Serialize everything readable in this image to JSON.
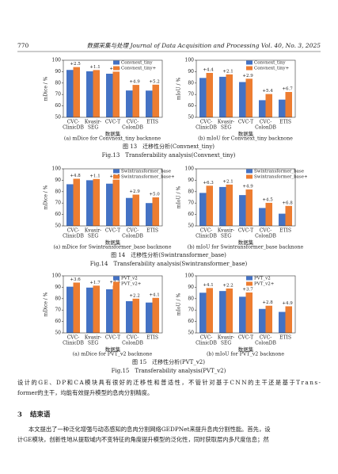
{
  "header": {
    "page_number": "770",
    "journal": "数据采集与处理 Journal of Data Acquisition and Processing Vol. 40, No. 3, 2025"
  },
  "chart_data": [
    {
      "type": "bar",
      "ylabel": "mDice / %",
      "xlabel": "数据集",
      "categories": [
        [
          "CVC-",
          "ClinicDB"
        ],
        [
          "Kvasir-",
          "SEG"
        ],
        [
          "CVC-T"
        ],
        [
          "CVC-",
          "ColonDB"
        ],
        [
          "ETIS"
        ]
      ],
      "series": [
        {
          "name": "Convnext_tiny",
          "color": "#4472c4",
          "values": [
            91.5,
            90.3,
            88.2,
            73.5,
            73.4
          ]
        },
        {
          "name": "Convnext_tiny+",
          "color": "#ed7d31",
          "values": [
            94,
            91.4,
            90,
            78.4,
            78.6
          ]
        }
      ],
      "annotations": [
        "+2.5",
        "+1.1",
        "+1.8",
        "+4.9",
        "+5.2"
      ],
      "ylim": [
        50,
        100
      ],
      "yticks": [
        50,
        60,
        70,
        80,
        90,
        100
      ],
      "legend": "upper right"
    },
    {
      "type": "bar",
      "ylabel": "mIoU / %",
      "xlabel": "数据集",
      "categories": [
        [
          "CVC-",
          "ClinicDB"
        ],
        [
          "Kvasir-",
          "SEG"
        ],
        [
          "CVC-T"
        ],
        [
          "CVC-",
          "ColonDB"
        ],
        [
          "ETIS"
        ]
      ],
      "series": [
        {
          "name": "Convnext_tiny",
          "color": "#4472c4",
          "values": [
            84.5,
            85.5,
            80.9,
            65,
            65.5
          ]
        },
        {
          "name": "Convnext_tiny+",
          "color": "#ed7d31",
          "values": [
            88.9,
            87.6,
            83.8,
            70.4,
            72.2
          ]
        }
      ],
      "annotations": [
        "+4.4",
        "+2.1",
        "+2.9",
        "+5.4",
        "+6.7"
      ],
      "ylim": [
        50,
        100
      ],
      "yticks": [
        50,
        60,
        70,
        80,
        90,
        100
      ],
      "legend": "upper right"
    },
    {
      "type": "bar",
      "ylabel": "mDice / %",
      "xlabel": "数据集",
      "categories": [
        [
          "CVC-",
          "ClinicDB"
        ],
        [
          "Kvasir-",
          "SEG"
        ],
        [
          "CVC-T"
        ],
        [
          "CVC-",
          "ColonDB"
        ],
        [
          "ETIS"
        ]
      ],
      "series": [
        {
          "name": "Swintransformer_base",
          "color": "#4472c4",
          "values": [
            86.5,
            90,
            87,
            74.5,
            70
          ]
        },
        {
          "name": "Swintransformer_base+",
          "color": "#ed7d31",
          "values": [
            91.3,
            91.1,
            90.5,
            77.4,
            75
          ]
        }
      ],
      "annotations": [
        "+4.8",
        "+1.1",
        "+3.5",
        "+2.9",
        "+5.0"
      ],
      "ylim": [
        50,
        100
      ],
      "yticks": [
        50,
        60,
        70,
        80,
        90,
        100
      ],
      "legend": "upper right"
    },
    {
      "type": "bar",
      "ylabel": "mIoU / %",
      "xlabel": "数据集",
      "categories": [
        [
          "CVC-",
          "ClinicDB"
        ],
        [
          "Kvasir-",
          "SEG"
        ],
        [
          "CVC-T"
        ],
        [
          "CVC-",
          "ColonDB"
        ],
        [
          "ETIS"
        ]
      ],
      "series": [
        {
          "name": "Swintransformer_base",
          "color": "#4472c4",
          "values": [
            78.9,
            84.1,
            77,
            65.7,
            60.7
          ]
        },
        {
          "name": "Swintransformer_base+",
          "color": "#ed7d31",
          "values": [
            85.2,
            86.2,
            81.9,
            70.2,
            67.5
          ]
        }
      ],
      "annotations": [
        "+6.3",
        "+2.1",
        "+4.9",
        "+4.5",
        "+6.8"
      ],
      "ylim": [
        50,
        100
      ],
      "yticks": [
        50,
        60,
        70,
        80,
        90,
        100
      ],
      "legend": "upper right"
    },
    {
      "type": "bar",
      "ylabel": "mDice / %",
      "xlabel": "数据集",
      "categories": [
        [
          "CVC-",
          "ClinicDB"
        ],
        [
          "Kvasir-",
          "SEG"
        ],
        [
          "CVC-T"
        ],
        [
          "CVC-",
          "ColonDB"
        ],
        [
          "ETIS"
        ]
      ],
      "series": [
        {
          "name": "PVT_v2",
          "color": "#4472c4",
          "values": [
            90.5,
            89.7,
            88.2,
            77.8,
            76.6
          ]
        },
        {
          "name": "PVT_v2+",
          "color": "#ed7d31",
          "values": [
            94.1,
            91.4,
            91.5,
            80,
            80.7
          ]
        }
      ],
      "annotations": [
        "+3.6",
        "+1.7",
        "+3.3",
        "+2.2",
        "+4.1"
      ],
      "ylim": [
        50,
        100
      ],
      "yticks": [
        50,
        60,
        70,
        80,
        90,
        100
      ],
      "legend": "upper right"
    },
    {
      "type": "bar",
      "ylabel": "mIoU / %",
      "xlabel": "数据集",
      "categories": [
        [
          "CVC-",
          "ClinicDB"
        ],
        [
          "Kvasir-",
          "SEG"
        ],
        [
          "CVC-T"
        ],
        [
          "CVC-",
          "ColonDB"
        ],
        [
          "ETIS"
        ]
      ],
      "series": [
        {
          "name": "PVT_v2",
          "color": "#4472c4",
          "values": [
            85.2,
            86.7,
            81.7,
            71,
            68.4
          ]
        },
        {
          "name": "PVT_v2+",
          "color": "#ed7d31",
          "values": [
            89.3,
            88.9,
            85.4,
            73.8,
            73.3
          ]
        }
      ],
      "annotations": [
        "+4.1",
        "+2.2",
        "+3.7",
        "+2.8",
        "+4.9"
      ],
      "ylim": [
        50,
        100
      ],
      "yticks": [
        50,
        60,
        70,
        80,
        90,
        100
      ],
      "legend": "upper right"
    }
  ],
  "figures": [
    {
      "subcaptions": [
        "(a) mDice for Convnext_tiny backnone",
        "(b) mIoU for Convnext_tiny backnone"
      ],
      "caption_cn": "图 13　迁移性分析(Convnext_tiny)",
      "caption_en": "Fig.13　Transferability analysis(Convnext_tiny)"
    },
    {
      "subcaptions": [
        "(a) mDice for Swintransformer_base backnone",
        "(b) mIoU for Swintransformer_base backnone"
      ],
      "caption_cn": "图 14　迁移性分析(Swintransformer_base)",
      "caption_en": "Fig.14　Transferability analysis(Swintransformer_base)"
    },
    {
      "subcaptions": [
        "(a) mDice for PVT_v2 backnone",
        "(b) mIoU for PVT_v2 backnone"
      ],
      "caption_cn": "图 15　迁移性分析(PVT_v2)",
      "caption_en": "Fig.15　Transferability analysis(PVT_v2)"
    }
  ],
  "body": {
    "paragraph_1": [
      "设计的GE、DP和CA模块具有很好的迁移性和普适性，不管针对基于CNN的主干还是基于Trans-",
      "former的主干，均能有效提升模型的息肉分割精度。"
    ],
    "section": {
      "number": "3",
      "title": "结束语"
    },
    "paragraph_2": [
      "本文提出了一种泛化增强与动态感知的息肉分割网络GEDPNet来提升息肉分割性能。首先，设",
      "计GE模块，创新性地从提取域内不变特征的角度提升模型的泛化性，同时获取层内多尺度信息；然"
    ]
  }
}
